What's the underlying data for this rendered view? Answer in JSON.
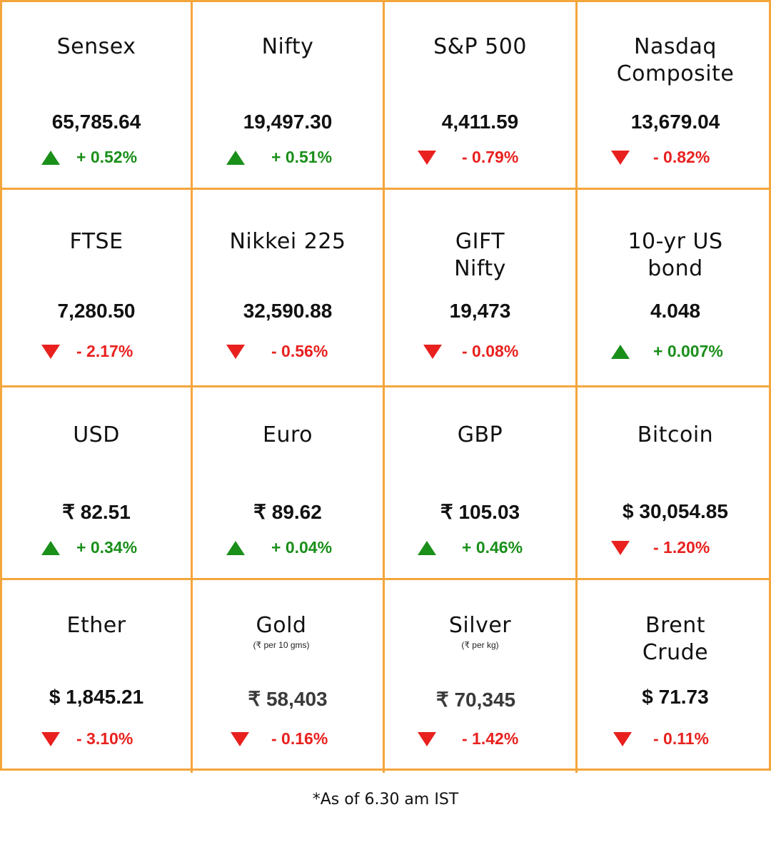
{
  "colors": {
    "border": "#f4a53c",
    "up": "#1a8f1a",
    "down": "#e8211f"
  },
  "cells": [
    {
      "name": "Sensex",
      "value": "65,785.64",
      "change": "+ 0.52%",
      "direction": "up"
    },
    {
      "name": "Nifty",
      "value": "19,497.30",
      "change": "+ 0.51%",
      "direction": "up"
    },
    {
      "name": "S&P 500",
      "value": "4,411.59",
      "change": "- 0.79%",
      "direction": "down"
    },
    {
      "name": "Nasdaq\nComposite",
      "value": "13,679.04",
      "change": "- 0.82%",
      "direction": "down"
    },
    {
      "name": "FTSE",
      "value": "7,280.50",
      "change": "- 2.17%",
      "direction": "down"
    },
    {
      "name": "Nikkei 225",
      "value": "32,590.88",
      "change": "- 0.56%",
      "direction": "down"
    },
    {
      "name": "GIFT\nNifty",
      "value": "19,473",
      "change": "-  0.08%",
      "direction": "down"
    },
    {
      "name": "10-yr US\nbond",
      "value": "4.048",
      "change": "+ 0.007%",
      "direction": "up"
    },
    {
      "name": "USD",
      "value": "₹ 82.51",
      "change": "+ 0.34%",
      "direction": "up"
    },
    {
      "name": "Euro",
      "value": "₹ 89.62",
      "change": "+ 0.04%",
      "direction": "up"
    },
    {
      "name": "GBP",
      "value": "₹ 105.03",
      "change": "+ 0.46%",
      "direction": "up"
    },
    {
      "name": "Bitcoin",
      "value": "$ 30,054.85",
      "change": "- 1.20%",
      "direction": "down"
    },
    {
      "name": "Ether",
      "value": "$ 1,845.21",
      "change": "- 3.10%",
      "direction": "down"
    },
    {
      "name": "Gold",
      "sub": "(₹ per 10 gms)",
      "value": "₹ 58,403",
      "change": "- 0.16%",
      "direction": "down"
    },
    {
      "name": "Silver",
      "sub": "(₹ per kg)",
      "value": "₹ 70,345",
      "change": "- 1.42%",
      "direction": "down"
    },
    {
      "name": "Brent\nCrude",
      "value": "$ 71.73",
      "change": "- 0.11%",
      "direction": "down"
    }
  ],
  "footnote": "*As of 6.30 am IST"
}
